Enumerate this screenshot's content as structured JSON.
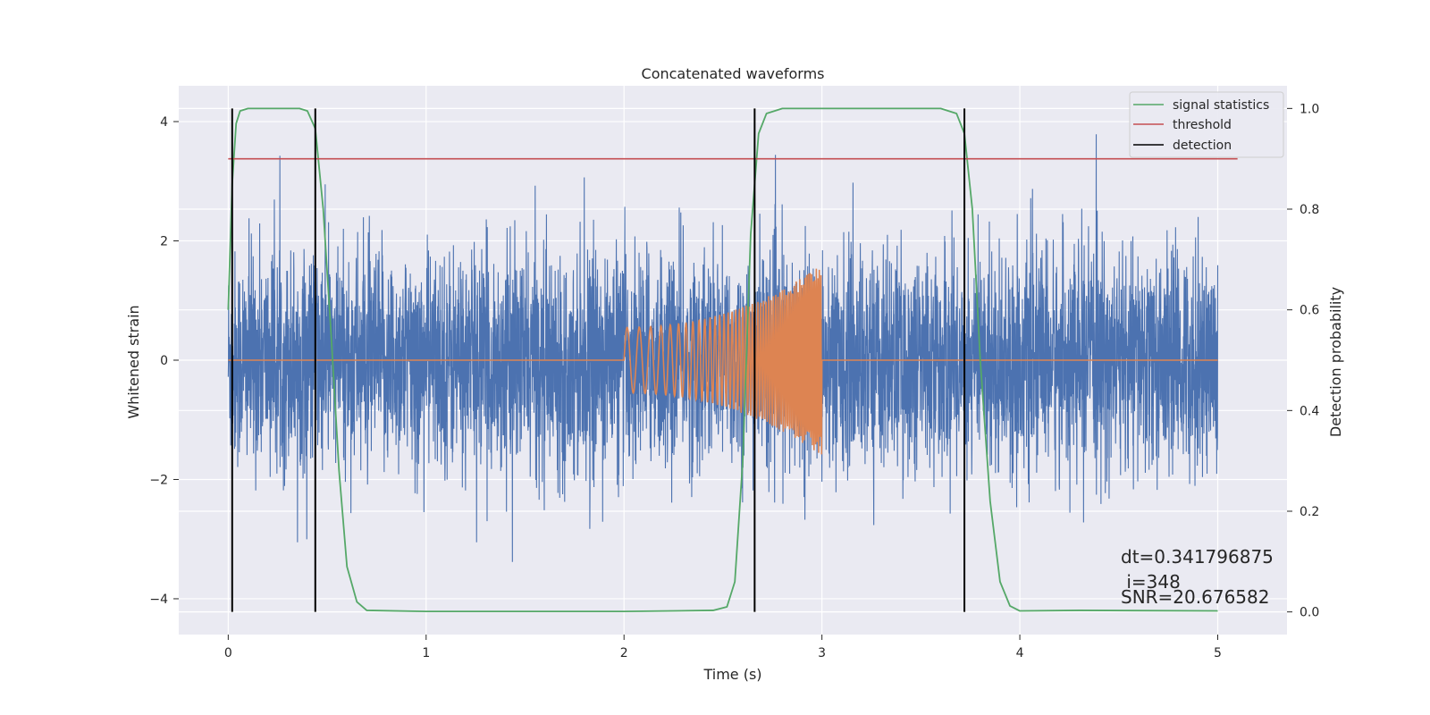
{
  "chart_data": {
    "type": "line",
    "title": "Concatenated waveforms",
    "xlabel": "Time (s)",
    "ylabel_left": "Whitened strain",
    "ylabel_right": "Detection probability",
    "xlim": [
      -0.25,
      5.35
    ],
    "ylim_left": [
      -4.6,
      4.6
    ],
    "ylim_right": [
      -0.045,
      1.045
    ],
    "xticks": [
      0,
      1,
      2,
      3,
      4,
      5
    ],
    "xtick_labels": [
      "0",
      "1",
      "2",
      "3",
      "4",
      "5"
    ],
    "yticks_left": [
      -4,
      -2,
      0,
      2,
      4
    ],
    "ytick_labels_left": [
      "−4",
      "−2",
      "0",
      "2",
      "4"
    ],
    "yticks_right": [
      0.0,
      0.2,
      0.4,
      0.6,
      0.8,
      1.0
    ],
    "ytick_labels_right": [
      "0.0",
      "0.2",
      "0.4",
      "0.6",
      "0.8",
      "1.0"
    ],
    "grid": true,
    "legend_position": "top-right",
    "colors": {
      "background": "#eaeaf2",
      "strain": "#4c72b0",
      "template": "#dd8452",
      "signal_statistics": "#55a868",
      "threshold": "#c44e52",
      "detection": "#000000"
    },
    "series": [
      {
        "name": "signal statistics",
        "axis": "right",
        "x": [
          0.0,
          0.02,
          0.04,
          0.06,
          0.1,
          0.2,
          0.36,
          0.4,
          0.44,
          0.48,
          0.52,
          0.56,
          0.6,
          0.65,
          0.7,
          1.0,
          2.0,
          2.45,
          2.52,
          2.56,
          2.6,
          2.64,
          2.68,
          2.72,
          2.8,
          3.0,
          3.6,
          3.68,
          3.72,
          3.76,
          3.8,
          3.85,
          3.9,
          3.95,
          4.0,
          4.3,
          5.0
        ],
        "y": [
          0.6,
          0.85,
          0.97,
          0.995,
          1.0,
          1.0,
          1.0,
          0.995,
          0.96,
          0.8,
          0.55,
          0.28,
          0.09,
          0.02,
          0.003,
          0.001,
          0.001,
          0.003,
          0.01,
          0.06,
          0.3,
          0.75,
          0.95,
          0.99,
          1.0,
          1.0,
          1.0,
          0.99,
          0.95,
          0.8,
          0.5,
          0.22,
          0.06,
          0.012,
          0.002,
          0.003,
          0.002
        ]
      },
      {
        "name": "threshold",
        "axis": "right",
        "x": [
          0.0,
          5.1
        ],
        "y": [
          0.9,
          0.9
        ]
      },
      {
        "name": "detection",
        "axis": "right",
        "x": [
          0.02,
          0.44,
          2.66,
          3.72
        ],
        "y_range": [
          0.0,
          1.0
        ]
      }
    ],
    "strain_noise": {
      "axis": "left",
      "x_range": [
        0.0,
        5.0
      ],
      "typical_amplitude": 0.9,
      "peak_amplitude": 3.5
    },
    "template_chirp": {
      "axis": "left",
      "x_range": [
        2.0,
        3.0
      ],
      "amplitude_start": 0.55,
      "amplitude_end": 1.6
    },
    "annotations": [
      "dt=0.341796875",
      " i=348",
      "SNR=20.676582"
    ]
  }
}
